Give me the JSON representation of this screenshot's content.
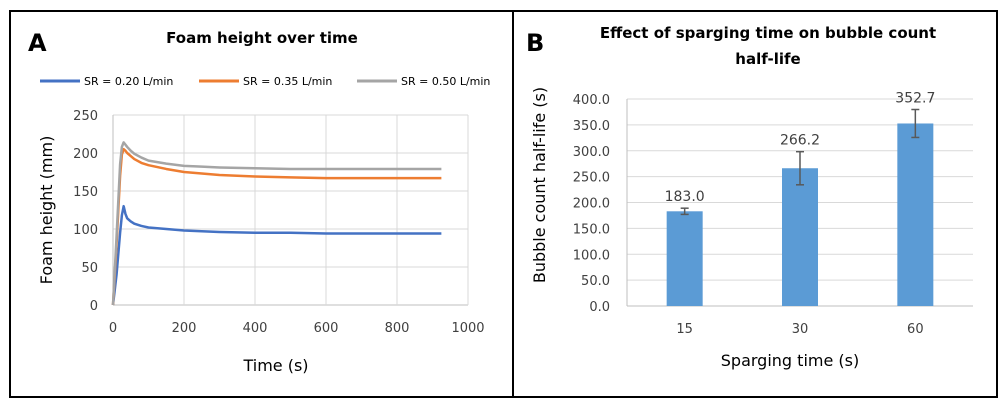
{
  "chart_data": [
    {
      "panel": "A",
      "type": "line",
      "title": "Foam height over time",
      "xlabel": "Time (s)",
      "ylabel": "Foam height (mm)",
      "xlim": [
        0,
        1000
      ],
      "ylim": [
        0,
        250
      ],
      "xticks": [
        0,
        200,
        400,
        600,
        800,
        1000
      ],
      "yticks": [
        0,
        50,
        100,
        150,
        200,
        250
      ],
      "grid": true,
      "legend_position": "top",
      "series": [
        {
          "name": "SR = 0.20 L/min",
          "color": "#4472C4",
          "x": [
            0,
            10,
            20,
            25,
            30,
            35,
            40,
            50,
            60,
            80,
            100,
            150,
            200,
            250,
            300,
            400,
            500,
            600,
            700,
            800,
            900,
            925
          ],
          "y": [
            0,
            40,
            95,
            118,
            130,
            120,
            114,
            110,
            107,
            104,
            102,
            100,
            98,
            97,
            96,
            95,
            95,
            94,
            94,
            94,
            94,
            94
          ]
        },
        {
          "name": "SR = 0.35 L/min",
          "color": "#ED7D31",
          "x": [
            0,
            10,
            20,
            25,
            30,
            35,
            40,
            50,
            60,
            80,
            100,
            150,
            200,
            250,
            300,
            400,
            500,
            600,
            700,
            800,
            900,
            925
          ],
          "y": [
            0,
            80,
            170,
            198,
            205,
            203,
            200,
            196,
            192,
            187,
            184,
            179,
            175,
            173,
            171,
            169,
            168,
            167,
            167,
            167,
            167,
            167
          ]
        },
        {
          "name": "SR = 0.50 L/min",
          "color": "#A5A5A5",
          "x": [
            0,
            10,
            20,
            25,
            30,
            35,
            40,
            50,
            60,
            80,
            100,
            150,
            200,
            250,
            300,
            400,
            500,
            600,
            700,
            800,
            900,
            925
          ],
          "y": [
            0,
            90,
            185,
            208,
            214,
            211,
            208,
            203,
            199,
            194,
            190,
            186,
            183,
            182,
            181,
            180,
            179,
            179,
            179,
            179,
            179,
            179
          ]
        }
      ]
    },
    {
      "panel": "B",
      "type": "bar",
      "title": [
        "Effect of sparging time on bubble count",
        "half-life"
      ],
      "xlabel": "Sparging time (s)",
      "ylabel": "Bubble count half-life (s)",
      "categories": [
        "15",
        "30",
        "60"
      ],
      "values": [
        183.0,
        266.2,
        352.7
      ],
      "value_labels": [
        "183.0",
        "266.2",
        "352.7"
      ],
      "errors": [
        6,
        32,
        27
      ],
      "ylim": [
        0,
        400
      ],
      "yticks": [
        "0.0",
        "50.0",
        "100.0",
        "150.0",
        "200.0",
        "250.0",
        "300.0",
        "350.0",
        "400.0"
      ],
      "grid": true,
      "bar_color": "#5B9BD5",
      "error_color": "#595959"
    }
  ]
}
